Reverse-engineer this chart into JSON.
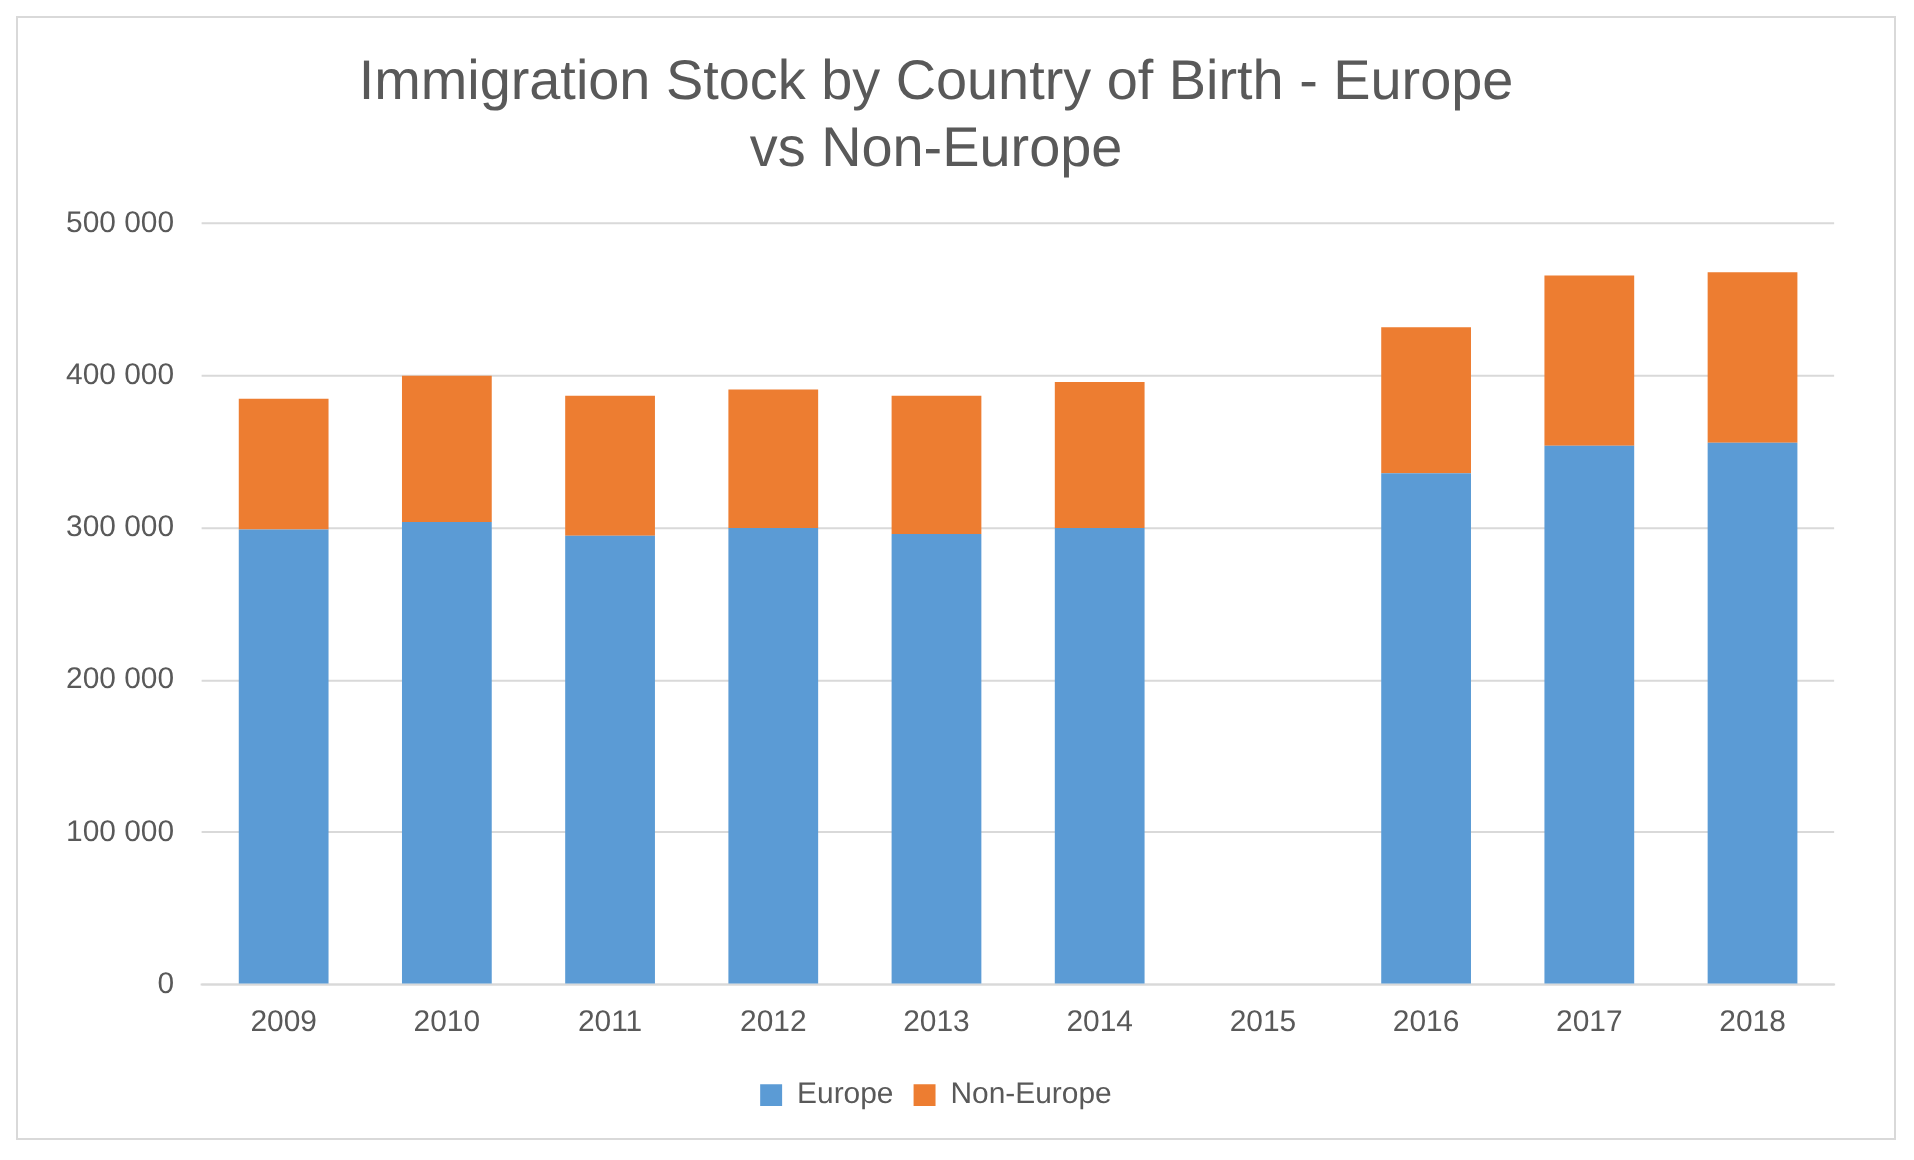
{
  "chart_data": {
    "type": "bar",
    "title": "Immigration Stock by Country of Birth - Europe vs Non-Europe",
    "categories": [
      "2009",
      "2010",
      "2011",
      "2012",
      "2013",
      "2014",
      "2015",
      "2016",
      "2017",
      "2018"
    ],
    "stacked": true,
    "series": [
      {
        "name": "Europe",
        "color": "#5b9bd5",
        "values": [
          299000,
          304000,
          295000,
          300000,
          296000,
          300000,
          null,
          336000,
          354000,
          356000
        ]
      },
      {
        "name": "Non-Europe",
        "color": "#ed7d31",
        "values": [
          86000,
          96000,
          92000,
          91000,
          91000,
          96000,
          null,
          96000,
          112000,
          112000
        ]
      }
    ],
    "ylim": [
      0,
      500000
    ],
    "yticks": [
      {
        "value": 0,
        "label": "0"
      },
      {
        "value": 100000,
        "label": "100 000"
      },
      {
        "value": 200000,
        "label": "200 000"
      },
      {
        "value": 300000,
        "label": "300 000"
      },
      {
        "value": 400000,
        "label": "400 000"
      },
      {
        "value": 500000,
        "label": "500 000"
      }
    ],
    "grid": "y",
    "legend": "bottom"
  }
}
